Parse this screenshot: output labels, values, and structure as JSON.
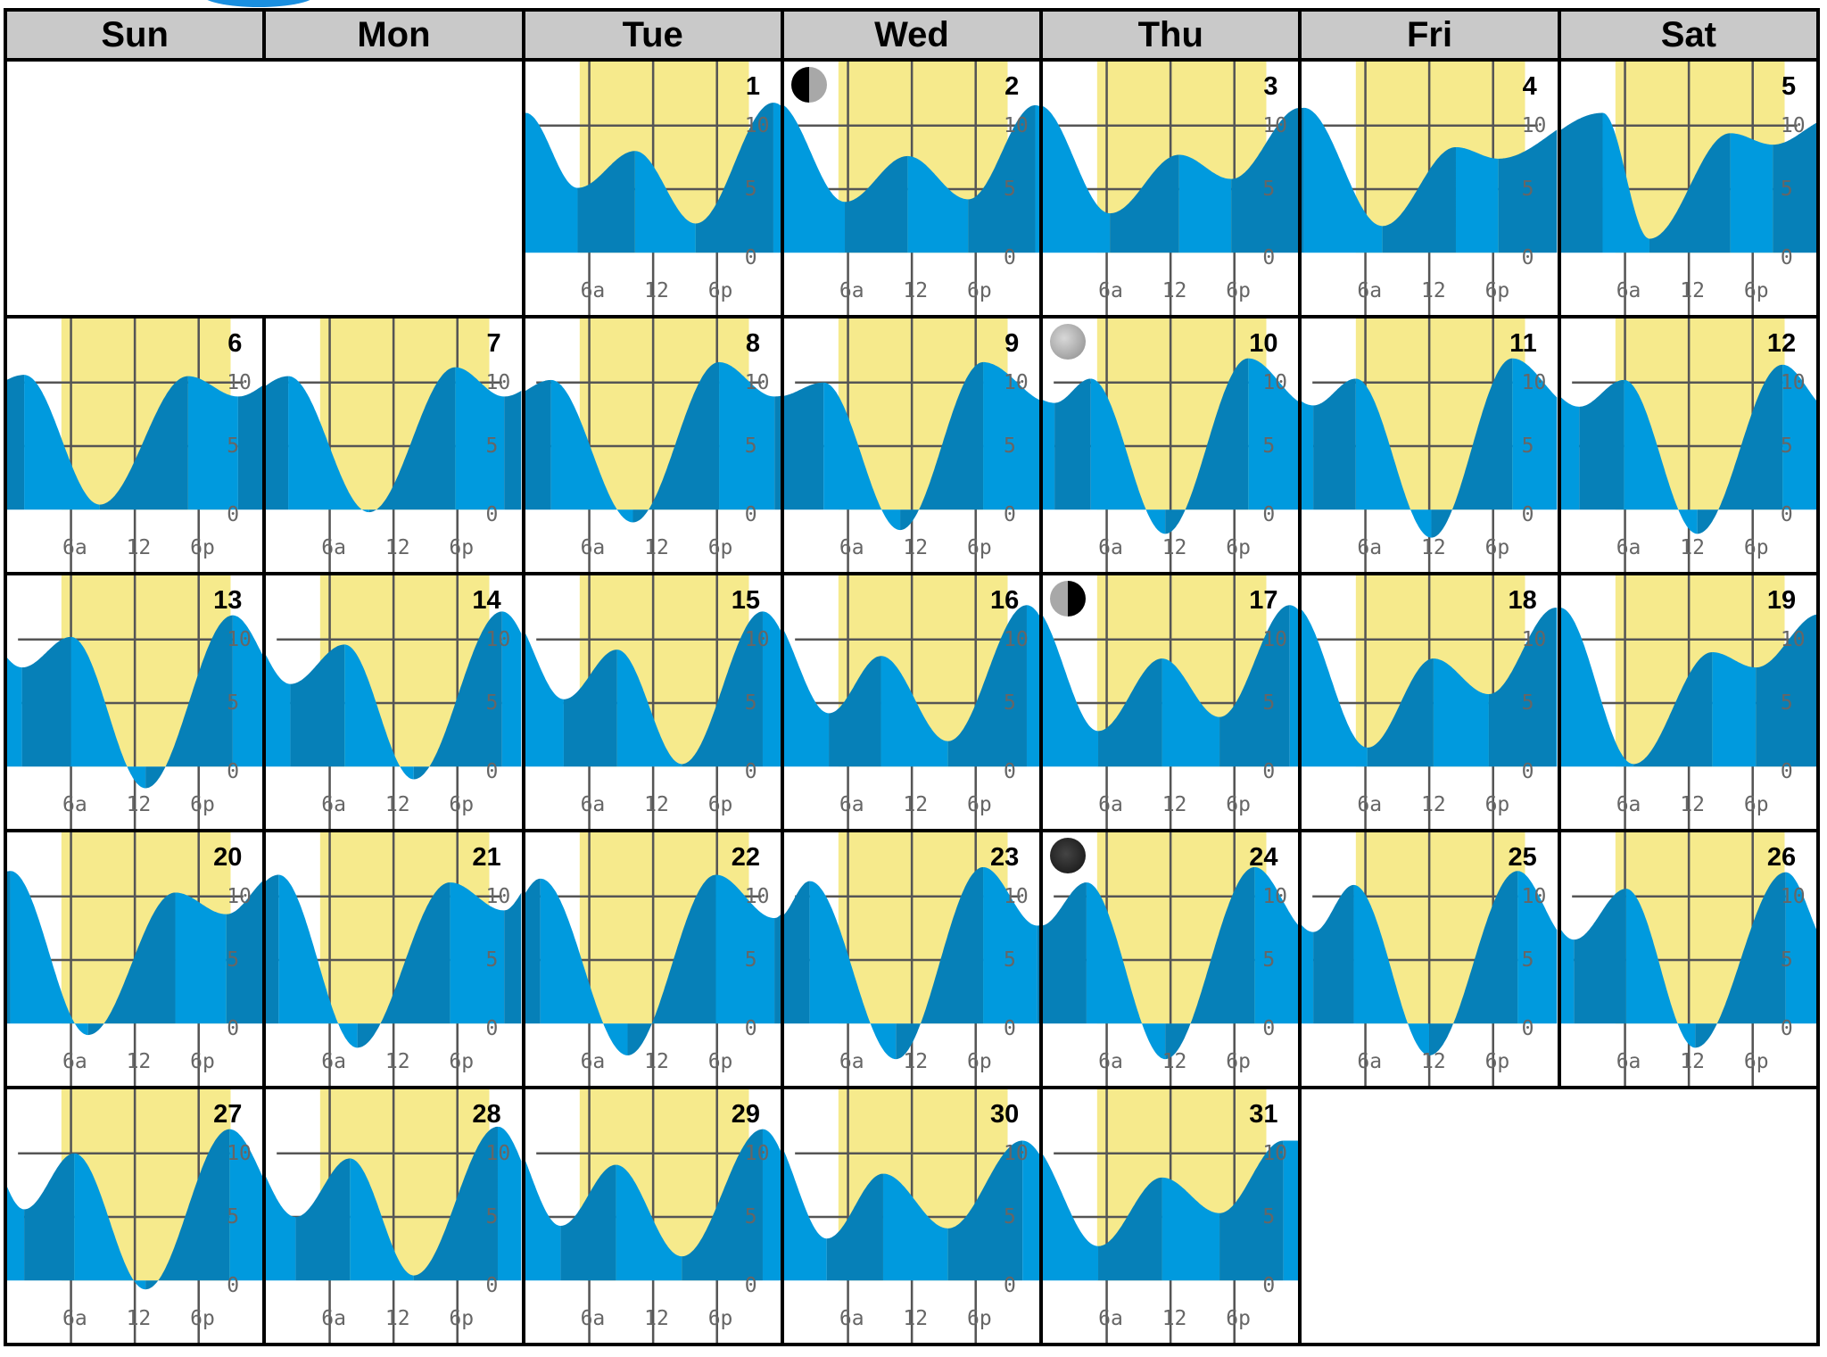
{
  "weekdays": [
    "Sun",
    "Mon",
    "Tue",
    "Wed",
    "Thu",
    "Fri",
    "Sat"
  ],
  "month": {
    "first_weekday_index": 2,
    "days": 31
  },
  "axis": {
    "hour_labels": [
      "6a",
      "12",
      "6p"
    ],
    "hour_ticks": [
      6,
      12,
      18
    ],
    "height_labels": [
      "10",
      "5",
      "0"
    ],
    "height_ticks": [
      10,
      5,
      0
    ]
  },
  "daylight": {
    "sunrise_hour": 5.1,
    "sunset_hour": 21.0
  },
  "colors": {
    "falling_water": "#009ade",
    "rising_water": "#0680b8",
    "daylight": "#f6ea8c",
    "grid": "#555555",
    "header_bg": "#c9c9c9"
  },
  "moon_phases": [
    {
      "day": 2,
      "phase": "last-quarter"
    },
    {
      "day": 10,
      "phase": "full"
    },
    {
      "day": 17,
      "phase": "first-quarter"
    },
    {
      "day": 24,
      "phase": "new"
    }
  ],
  "chart_data": {
    "type": "area",
    "title": "",
    "xlabel": "",
    "ylabel": "",
    "ylim": [
      -3,
      15
    ],
    "xlim_hours": [
      0,
      24
    ],
    "grid": true,
    "extremes_columns": [
      "day",
      "hour",
      "height"
    ],
    "extremes": [
      [
        1,
        0,
        11.0
      ],
      [
        1,
        4.9,
        5.1
      ],
      [
        1,
        10.3,
        8.0
      ],
      [
        1,
        16.0,
        2.3
      ],
      [
        1,
        23.3,
        11.8
      ],
      [
        2,
        5.7,
        4.0
      ],
      [
        2,
        11.6,
        7.6
      ],
      [
        2,
        17.3,
        4.2
      ],
      [
        2,
        23.6,
        11.6
      ],
      [
        3,
        6.3,
        3.1
      ],
      [
        3,
        12.8,
        7.7
      ],
      [
        3,
        17.7,
        5.8
      ],
      [
        4,
        0.2,
        11.4
      ],
      [
        4,
        7.6,
        2.1
      ],
      [
        4,
        14.5,
        8.3
      ],
      [
        4,
        18.5,
        7.4
      ],
      [
        5,
        3.9,
        11.0
      ],
      [
        5,
        8.3,
        1.1
      ],
      [
        5,
        15.9,
        9.4
      ],
      [
        5,
        19.9,
        8.5
      ],
      [
        6,
        1.6,
        10.6
      ],
      [
        6,
        8.7,
        0.4
      ],
      [
        6,
        17.0,
        10.5
      ],
      [
        6,
        21.7,
        8.9
      ],
      [
        7,
        2.1,
        10.5
      ],
      [
        7,
        9.7,
        -0.2
      ],
      [
        7,
        17.8,
        11.2
      ],
      [
        7,
        22.4,
        8.9
      ],
      [
        8,
        2.4,
        10.2
      ],
      [
        8,
        10.1,
        -1.0
      ],
      [
        8,
        18.2,
        11.6
      ],
      [
        8,
        23.4,
        8.9
      ],
      [
        9,
        3.7,
        10.0
      ],
      [
        9,
        10.9,
        -1.6
      ],
      [
        9,
        18.7,
        11.6
      ],
      [
        10,
        1.1,
        8.4
      ],
      [
        10,
        4.5,
        10.3
      ],
      [
        10,
        11.5,
        -1.9
      ],
      [
        10,
        19.3,
        11.9
      ],
      [
        11,
        1.1,
        8.2
      ],
      [
        11,
        5.1,
        10.3
      ],
      [
        11,
        12.2,
        -2.2
      ],
      [
        11,
        19.8,
        11.9
      ],
      [
        12,
        1.7,
        8.1
      ],
      [
        12,
        5.9,
        10.2
      ],
      [
        12,
        12.8,
        -1.9
      ],
      [
        12,
        20.8,
        11.4
      ],
      [
        13,
        1.4,
        7.8
      ],
      [
        13,
        6.0,
        10.2
      ],
      [
        13,
        13.0,
        -1.7
      ],
      [
        13,
        21.2,
        11.9
      ],
      [
        14,
        2.3,
        6.5
      ],
      [
        14,
        7.4,
        9.6
      ],
      [
        14,
        13.9,
        -1.0
      ],
      [
        14,
        22.2,
        12.2
      ],
      [
        15,
        3.6,
        5.3
      ],
      [
        15,
        8.6,
        9.2
      ],
      [
        15,
        14.7,
        0.2
      ],
      [
        15,
        22.3,
        12.2
      ],
      [
        16,
        4.2,
        4.2
      ],
      [
        16,
        9.1,
        8.7
      ],
      [
        16,
        15.4,
        2.0
      ],
      [
        16,
        22.8,
        12.7
      ],
      [
        17,
        5.2,
        2.8
      ],
      [
        17,
        11.2,
        8.5
      ],
      [
        17,
        16.6,
        3.9
      ],
      [
        17,
        23.2,
        12.7
      ],
      [
        18,
        6.2,
        1.5
      ],
      [
        18,
        12.4,
        8.5
      ],
      [
        18,
        17.6,
        5.7
      ],
      [
        18,
        23.9,
        12.5
      ],
      [
        19,
        6.8,
        0.2
      ],
      [
        19,
        14.2,
        9.0
      ],
      [
        19,
        18.3,
        7.8
      ],
      [
        20,
        0.3,
        12.0
      ],
      [
        20,
        7.6,
        -0.9
      ],
      [
        20,
        15.8,
        10.3
      ],
      [
        20,
        20.6,
        8.6
      ],
      [
        21,
        1.2,
        11.7
      ],
      [
        21,
        8.6,
        -1.9
      ],
      [
        21,
        17.3,
        11.1
      ],
      [
        21,
        22.4,
        8.9
      ],
      [
        22,
        1.4,
        11.4
      ],
      [
        22,
        9.6,
        -2.5
      ],
      [
        22,
        17.9,
        11.7
      ],
      [
        22,
        23.4,
        8.3
      ],
      [
        23,
        2.4,
        11.2
      ],
      [
        23,
        10.5,
        -2.8
      ],
      [
        23,
        18.7,
        12.3
      ],
      [
        23,
        23.8,
        7.7
      ],
      [
        24,
        4.1,
        11.1
      ],
      [
        24,
        11.5,
        -2.8
      ],
      [
        24,
        19.9,
        12.3
      ],
      [
        25,
        1.1,
        7.2
      ],
      [
        25,
        4.9,
        10.9
      ],
      [
        25,
        12.0,
        -2.5
      ],
      [
        25,
        20.3,
        12.0
      ],
      [
        26,
        1.2,
        6.6
      ],
      [
        26,
        6.1,
        10.6
      ],
      [
        26,
        12.6,
        -1.9
      ],
      [
        26,
        21.1,
        11.9
      ],
      [
        27,
        1.6,
        5.6
      ],
      [
        27,
        6.3,
        10.0
      ],
      [
        27,
        13.0,
        -0.7
      ],
      [
        27,
        20.9,
        11.9
      ],
      [
        28,
        2.8,
        5.0
      ],
      [
        28,
        7.9,
        9.6
      ],
      [
        28,
        13.9,
        0.4
      ],
      [
        28,
        21.8,
        12.1
      ],
      [
        29,
        3.3,
        4.3
      ],
      [
        29,
        8.5,
        9.1
      ],
      [
        29,
        14.7,
        1.9
      ],
      [
        29,
        22.3,
        11.9
      ],
      [
        30,
        4.0,
        3.3
      ],
      [
        30,
        9.3,
        8.4
      ],
      [
        30,
        15.4,
        4.1
      ],
      [
        30,
        22.4,
        11.0
      ],
      [
        31,
        5.2,
        2.7
      ],
      [
        31,
        11.2,
        8.1
      ],
      [
        31,
        16.6,
        5.3
      ],
      [
        31,
        22.6,
        11.0
      ]
    ]
  }
}
